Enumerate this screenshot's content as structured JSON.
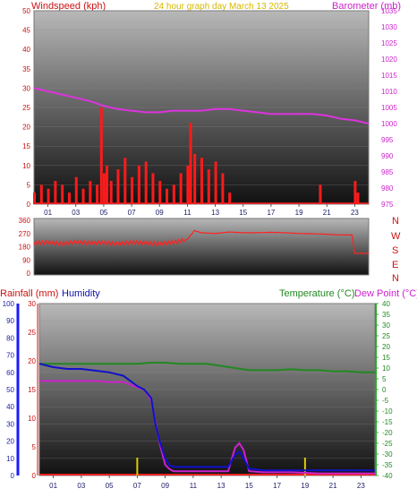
{
  "header": {
    "left_title": "Windspeed (kph)",
    "center_title": "24 hour graph day   March 13 2025",
    "right_title": "Barometer (mb)"
  },
  "colors": {
    "wind": "#ff1a1a",
    "gust": "#ee0000",
    "avg_wind": "#1a1aff",
    "low_wind": "#22aa22",
    "barometer": "#dd33dd",
    "direction": "#ff2222",
    "rain_axis": "#ee2222",
    "humidity": "#1010cc",
    "temperature": "#228822",
    "dew_point": "#cc22cc",
    "rain_marker": "#ddcc00"
  },
  "x_ticks": [
    "01",
    "03",
    "05",
    "07",
    "09",
    "11",
    "13",
    "15",
    "17",
    "19",
    "21",
    "23"
  ],
  "direction_labels": [
    "N",
    "W",
    "S",
    "E",
    "N"
  ],
  "bottom_labels": {
    "rainfall": "Rainfall (mm)",
    "humidity": "Humidity",
    "temperature": "Temperature (°C)",
    "dew_point": "Dew Point (°C)"
  },
  "chart_data": [
    {
      "type": "line",
      "title": "24 hour graph day   March 13 2025",
      "xlim": [
        0,
        24
      ],
      "ylim": [
        0,
        50
      ],
      "y_ticks": [
        0,
        5,
        10,
        15,
        20,
        25,
        30,
        35,
        40,
        45,
        50
      ],
      "ylim_right": [
        975,
        1035
      ],
      "y_ticks_right": [
        975,
        980,
        985,
        990,
        995,
        1000,
        1005,
        1010,
        1015,
        1020,
        1025,
        1030,
        1035
      ],
      "ylabel": "Windspeed (kph)",
      "ylabel_right": "Barometer (mb)",
      "series": [
        {
          "name": "Barometer (mb)",
          "axis": "right",
          "x": [
            0,
            1,
            2,
            3,
            4,
            5,
            6,
            7,
            8,
            9,
            10,
            11,
            12,
            13,
            14,
            15,
            16,
            17,
            18,
            19,
            20,
            21,
            22,
            23,
            24
          ],
          "values": [
            1011,
            1010,
            1009,
            1008,
            1007,
            1005.5,
            1004.5,
            1004,
            1003.5,
            1003.5,
            1004,
            1004,
            1004,
            1004.5,
            1004.5,
            1004,
            1003.5,
            1003,
            1003,
            1003,
            1003,
            1002.5,
            1001.5,
            1001,
            1000
          ]
        },
        {
          "name": "Windspeed (kph)",
          "axis": "left",
          "x": [
            0,
            0.5,
            1,
            1.5,
            2,
            2.5,
            3,
            3.5,
            4,
            4.5,
            4.8,
            5,
            5.2,
            5.5,
            6,
            6.5,
            7,
            7.5,
            8,
            8.5,
            9,
            9.5,
            10,
            10.5,
            11,
            11.2,
            11.5,
            12,
            12.5,
            13,
            13.5,
            14,
            14.2,
            14.5,
            15,
            16,
            17,
            18,
            19,
            20,
            20.5,
            21,
            22,
            22.8,
            23,
            23.2,
            24
          ],
          "values": [
            3,
            5,
            4,
            6,
            5,
            3,
            7,
            4,
            6,
            5,
            25,
            8,
            10,
            6,
            9,
            12,
            7,
            10,
            11,
            8,
            6,
            4,
            5,
            8,
            10,
            21,
            13,
            12,
            9,
            11,
            8,
            3,
            0,
            0,
            0,
            0,
            0,
            0,
            0,
            0,
            5,
            0,
            0,
            0,
            6,
            3,
            0
          ]
        }
      ]
    },
    {
      "type": "line",
      "ylabel": "Wind direction",
      "xlim": [
        0,
        24
      ],
      "ylim": [
        0,
        360
      ],
      "y_ticks": [
        0,
        90,
        180,
        270,
        360
      ],
      "series": [
        {
          "name": "Direction",
          "x": [
            0,
            1,
            2,
            3,
            4,
            5,
            6,
            7,
            8,
            9,
            10,
            11,
            11.5,
            12,
            13,
            14,
            15,
            16,
            17,
            18,
            19,
            20,
            21,
            22,
            22.8,
            23,
            24
          ],
          "values": [
            205,
            210,
            200,
            212,
            205,
            208,
            200,
            210,
            205,
            200,
            210,
            230,
            290,
            275,
            270,
            280,
            275,
            275,
            278,
            275,
            270,
            268,
            265,
            260,
            260,
            135,
            135
          ]
        }
      ]
    },
    {
      "type": "line",
      "xlim": [
        0,
        24
      ],
      "ylim": [
        0,
        100
      ],
      "y_ticks": [
        0,
        10,
        20,
        30,
        40,
        50,
        60,
        70,
        80,
        90,
        100
      ],
      "ylim_rain": [
        0,
        30
      ],
      "y_ticks_rain": [
        0,
        5,
        10,
        15,
        20,
        25,
        30
      ],
      "ylim_right": [
        -40,
        40
      ],
      "y_ticks_right": [
        -40,
        -35,
        -30,
        -25,
        -20,
        -15,
        -10,
        -5,
        0,
        5,
        10,
        15,
        20,
        25,
        30,
        35,
        40
      ],
      "ylabel": "Rainfall (mm)   Humidity",
      "ylabel_right": "Temperature (°C) Dew Point (°C)",
      "series": [
        {
          "name": "Humidity",
          "axis": "left",
          "x": [
            0,
            1,
            2,
            3,
            4,
            5,
            6,
            7,
            7.5,
            8,
            8.3,
            8.6,
            9,
            9.3,
            9.6,
            10,
            11,
            12,
            13,
            13.5,
            14,
            14.3,
            14.6,
            15,
            16,
            18,
            20,
            22,
            24
          ],
          "values": [
            65,
            63,
            62,
            62,
            61,
            60,
            58,
            52,
            50,
            45,
            30,
            20,
            10,
            6,
            5,
            5,
            5,
            5,
            5,
            5,
            12,
            14,
            10,
            4,
            3,
            3,
            3,
            3,
            3
          ]
        },
        {
          "name": "Temperature (°C)",
          "axis": "right",
          "x": [
            0,
            1,
            2,
            3,
            4,
            5,
            6,
            7,
            8,
            9,
            10,
            11,
            12,
            13,
            14,
            15,
            16,
            17,
            18,
            19,
            20,
            21,
            22,
            23,
            24
          ],
          "values": [
            12,
            12,
            12,
            12,
            12,
            12,
            12,
            12,
            12.5,
            12.5,
            12,
            12,
            12,
            11,
            10,
            9,
            9,
            9,
            9.5,
            9,
            9,
            8.5,
            8.5,
            8,
            8
          ]
        },
        {
          "name": "Dew Point (°C)",
          "axis": "right",
          "x": [
            0,
            1,
            2,
            3,
            4,
            5,
            6,
            7,
            7.5,
            8,
            8.3,
            8.6,
            9,
            9.3,
            9.6,
            10,
            11,
            12,
            13,
            13.5,
            14,
            14.3,
            14.6,
            15,
            16,
            18,
            20,
            22,
            24
          ],
          "values": [
            4,
            4,
            4,
            4,
            4,
            3.5,
            3.5,
            1,
            0,
            -5,
            -15,
            -25,
            -35,
            -37,
            -38,
            -38,
            -38,
            -38,
            -38,
            -38,
            -27,
            -25,
            -28,
            -38,
            -38.5,
            -38.5,
            -39,
            -39,
            -39
          ]
        },
        {
          "name": "Rainfall (mm)",
          "axis": "rain",
          "x": [
            0,
            24
          ],
          "values": [
            0,
            0
          ]
        }
      ]
    }
  ]
}
